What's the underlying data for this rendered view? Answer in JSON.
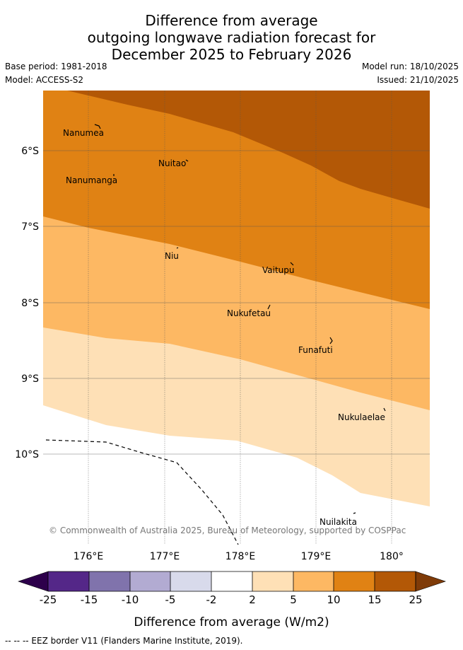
{
  "title": {
    "line1": "Difference from average",
    "line2": "outgoing longwave radiation forecast for",
    "line3": "December 2025 to February 2026"
  },
  "meta": {
    "base_period": "Base period: 1981-2018",
    "model": "Model: ACCESS-S2",
    "model_run": "Model run: 18/10/2025",
    "issued": "Issued: 21/10/2025"
  },
  "map": {
    "lat_labels": [
      "6°S",
      "7°S",
      "8°S",
      "9°S",
      "10°S"
    ],
    "lon_labels": [
      "176°E",
      "177°E",
      "178°E",
      "179°E",
      "180°"
    ],
    "places": [
      "Nanumea",
      "Nuitao",
      "Nanumanga",
      "Niu",
      "Vaitupu",
      "Nukufetau",
      "Funafuti",
      "Nukulaelae",
      "Nuilakita"
    ],
    "copyright": "© Commonwealth of Australia 2025, Bureau of Meteorology, supported by COSPPac",
    "fill_colors": {
      "band_15_25": "#b35806",
      "band_10_15": "#e08214",
      "band_5_10": "#fdb863",
      "band_2_5": "#fee0b6",
      "band_neutral": "#ffffff"
    }
  },
  "colorbar": {
    "ticks": [
      "-25",
      "-15",
      "-10",
      "-5",
      "-2",
      "2",
      "5",
      "10",
      "15",
      "25"
    ],
    "colors": [
      "#2d004b",
      "#542788",
      "#8073ac",
      "#b2abd2",
      "#d8daeb",
      "#ffffff",
      "#fee0b6",
      "#fdb863",
      "#e08214",
      "#b35806",
      "#7f3b08"
    ],
    "label": "Difference from average (W/m2)"
  },
  "footer": "-- -- -- EEZ border V11 (Flanders Marine Institute, 2019)."
}
